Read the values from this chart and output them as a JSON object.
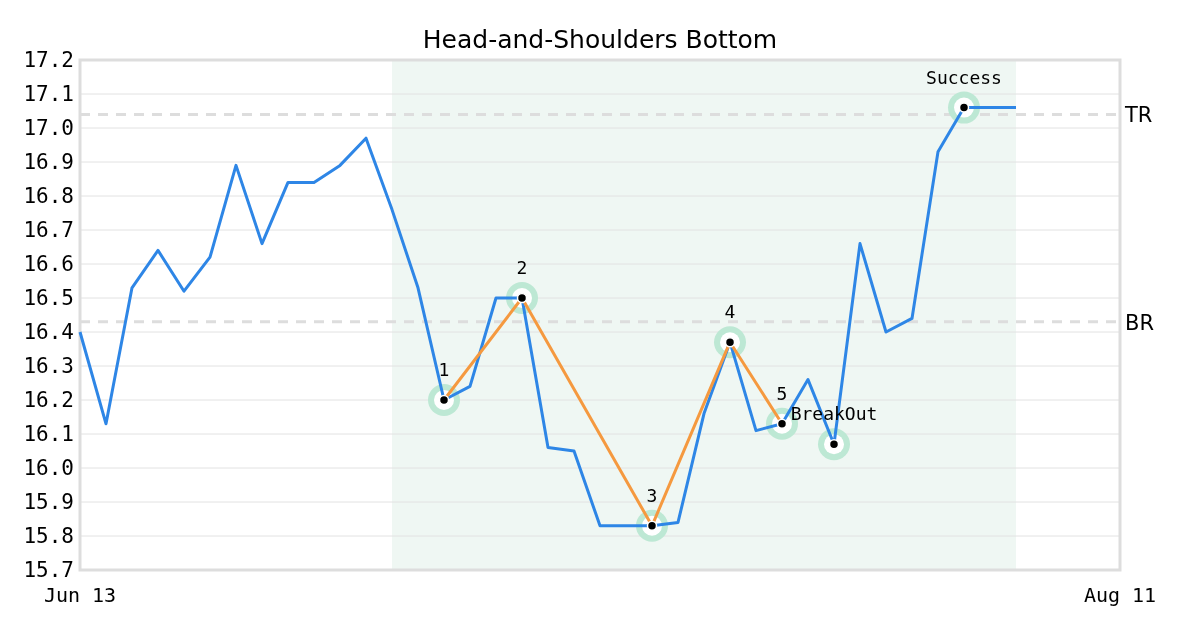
{
  "chart_data": {
    "type": "line",
    "title": "Head-and-Shoulders Bottom",
    "categories": [
      "Jun 13",
      null,
      null,
      null,
      null,
      null,
      null,
      null,
      null,
      null,
      null,
      null,
      null,
      null,
      null,
      null,
      null,
      null,
      null,
      null,
      null,
      null,
      null,
      null,
      null,
      null,
      null,
      null,
      null,
      null,
      null,
      null,
      null,
      null,
      null,
      null,
      null,
      null,
      null,
      null,
      "Aug 11"
    ],
    "ylim": [
      15.7,
      17.2
    ],
    "yticks": [
      15.7,
      15.8,
      15.9,
      {
        "value": 16.0,
        "label": "16.0"
      },
      16.1,
      16.2,
      16.3,
      16.4,
      16.5,
      16.6,
      16.7,
      16.8,
      16.9,
      {
        "value": 17.0,
        "label": "17.0"
      },
      17.1,
      17.2
    ],
    "grid": "y",
    "series": [
      {
        "color": "#2e86e6",
        "values": [
          16.4,
          16.13,
          16.53,
          16.64,
          16.52,
          16.62,
          16.89,
          16.66,
          16.84,
          16.84,
          16.89,
          16.97,
          16.76,
          16.53,
          16.2,
          16.24,
          16.5,
          16.5,
          16.06,
          16.05,
          15.83,
          15.83,
          15.83,
          15.84,
          16.16,
          16.37,
          16.11,
          16.13,
          16.26,
          16.07,
          16.66,
          16.4,
          16.44,
          16.93,
          17.06,
          17.06,
          17.06,
          null,
          null,
          null,
          null
        ]
      },
      {
        "color": "#f5993f",
        "marker": "circle",
        "values": [
          null,
          null,
          null,
          null,
          null,
          null,
          null,
          null,
          null,
          null,
          null,
          null,
          null,
          null,
          16.2,
          null,
          null,
          16.5,
          null,
          null,
          null,
          null,
          15.83,
          null,
          null,
          16.37,
          null,
          16.13,
          null,
          null,
          null,
          null,
          null,
          null,
          null,
          null,
          null,
          null,
          null,
          null,
          null
        ]
      },
      {
        "type": "scatter",
        "color": "#000000",
        "marker": "circle",
        "values": [
          null,
          null,
          null,
          null,
          null,
          null,
          null,
          null,
          null,
          null,
          null,
          null,
          null,
          null,
          16.2,
          null,
          null,
          16.5,
          null,
          null,
          null,
          null,
          15.83,
          null,
          null,
          16.37,
          null,
          16.13,
          null,
          16.07,
          null,
          null,
          null,
          null,
          17.06,
          null,
          null,
          null,
          null,
          null,
          null
        ]
      }
    ],
    "ref_lines": [
      {
        "axis": "y",
        "value": 17.04,
        "label": "TR",
        "color": "#dddddd",
        "line_style": "dashed"
      },
      {
        "axis": "y",
        "value": 16.43,
        "label": "BR",
        "color": "#dddddd",
        "line_style": "dashed"
      }
    ],
    "annotations": [
      {
        "text": "1",
        "y": 16.2
      },
      {
        "text": "2",
        "y": 16.5
      },
      {
        "text": "3",
        "y": 15.83
      },
      {
        "text": "4",
        "y": 16.37
      },
      {
        "text": "5",
        "y": 16.13
      },
      {
        "text": "BreakOut",
        "y": 16.07
      },
      {
        "text": "Success",
        "y": 17.06
      }
    ]
  }
}
